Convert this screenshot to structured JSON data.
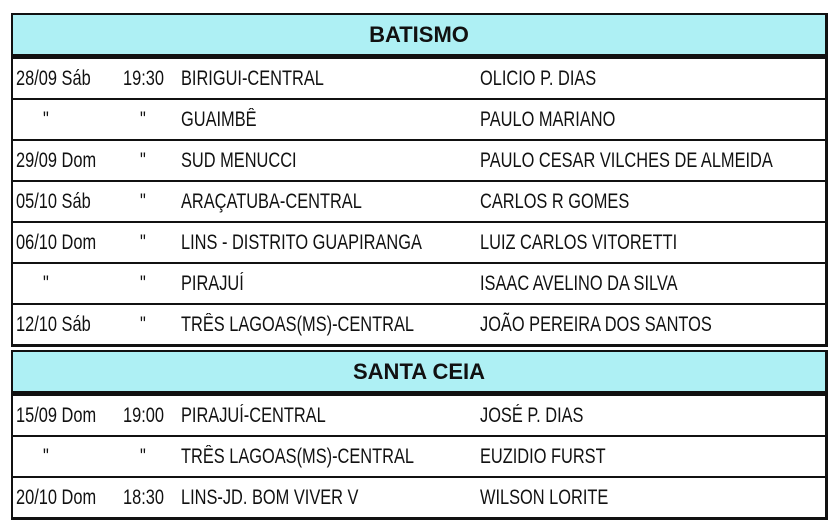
{
  "sections": [
    {
      "title": "BATISMO",
      "rows": [
        {
          "date": "28/09 Sáb",
          "time": "19:30",
          "place": "BIRIGUI-CENTRAL",
          "name": "OLICIO P. DIAS"
        },
        {
          "date": "\"",
          "time": "\"",
          "place": "GUAIMBÊ",
          "name": "PAULO MARIANO"
        },
        {
          "date": "29/09 Dom",
          "time": "\"",
          "place": "SUD MENUCCI",
          "name": "PAULO CESAR VILCHES DE ALMEIDA"
        },
        {
          "date": "05/10 Sáb",
          "time": "\"",
          "place": "ARAÇATUBA-CENTRAL",
          "name": "CARLOS R GOMES"
        },
        {
          "date": "06/10 Dom",
          "time": "\"",
          "place": "LINS - DISTRITO GUAPIRANGA",
          "name": "LUIZ CARLOS VITORETTI"
        },
        {
          "date": "\"",
          "time": "\"",
          "place": "PIRAJUÍ",
          "name": "ISAAC AVELINO DA SILVA"
        },
        {
          "date": "12/10 Sáb",
          "time": "\"",
          "place": "TRÊS LAGOAS(MS)-CENTRAL",
          "name": "JOÃO PEREIRA DOS SANTOS"
        }
      ]
    },
    {
      "title": "SANTA CEIA",
      "rows": [
        {
          "date": "15/09 Dom",
          "time": "19:00",
          "place": "PIRAJUÍ-CENTRAL",
          "name": "JOSÉ P. DIAS"
        },
        {
          "date": "\"",
          "time": "\"",
          "place": "TRÊS LAGOAS(MS)-CENTRAL",
          "name": "EUZIDIO FURST"
        },
        {
          "date": "20/10 Dom",
          "time": "18:30",
          "place": "LINS-JD. BOM VIVER V",
          "name": "WILSON LORITE"
        }
      ]
    }
  ],
  "colors": {
    "header_bg": "#aef0f4",
    "border": "#111111"
  }
}
